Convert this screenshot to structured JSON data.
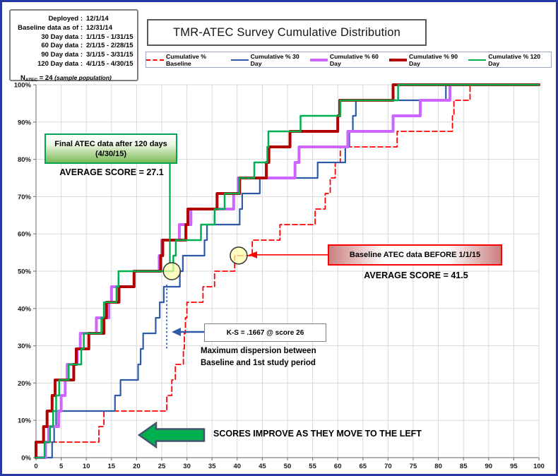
{
  "info_box": {
    "rows": [
      {
        "label": "Deployed :",
        "value": "12/1/14"
      },
      {
        "label": "Baseline data as of :",
        "value": "12/31/14"
      },
      {
        "label": "30 Day data :",
        "value": "1/1/15 - 1/31/15"
      },
      {
        "label": "60 Day data :",
        "value": "2/1/15 - 2/28/15"
      },
      {
        "label": "90 Day data :",
        "value": "3/1/15 - 3/31/15"
      },
      {
        "label": "120 Day data :",
        "value": "4/1/15 - 4/30/15"
      }
    ],
    "n_label": "N",
    "n_sub": "ATEC",
    "n_value": " =  24  ",
    "n_note": "(sample population)"
  },
  "title": "TMR-ATEC Survey Cumulative Distribution",
  "legend": [
    {
      "label": "Cumulative % Baseline",
      "color": "#FF0000",
      "dashed": true,
      "thickness": 2
    },
    {
      "label": "Cumulative % 30 Day",
      "color": "#2E5AA8",
      "dashed": false,
      "thickness": 2
    },
    {
      "label": "Cumulative % 60 Day",
      "color": "#CC66FF",
      "dashed": false,
      "thickness": 4
    },
    {
      "label": "Cumulative % 90 Day",
      "color": "#B20000",
      "dashed": false,
      "thickness": 4
    },
    {
      "label": "Cumulative % 120 Day",
      "color": "#00B050",
      "dashed": false,
      "thickness": 2
    }
  ],
  "annotations": {
    "final_box_line1": "Final ATEC data after 120 days",
    "final_box_line2": "(4/30/15)",
    "avg_120": "AVERAGE SCORE = 27.1",
    "baseline_box": "Baseline ATEC data BEFORE 1/1/15",
    "avg_baseline": "AVERAGE SCORE = 41.5",
    "ks_note": "K-S = .1667  @  score 26",
    "dispersion_line1": "Maximum dispersion between",
    "dispersion_line2": "Baseline and 1st study period",
    "scores_note": "SCORES IMPROVE AS THEY MOVE TO THE LEFT"
  },
  "chart_data": {
    "type": "line",
    "subtype": "cumulative-step",
    "grid": true,
    "n_samples": 24,
    "step_size_percent": 4.1667,
    "x_range": [
      0,
      100
    ],
    "y_range_percent": [
      0,
      100
    ],
    "x_ticks": [
      0,
      5,
      10,
      15,
      20,
      25,
      30,
      35,
      40,
      45,
      50,
      55,
      60,
      65,
      70,
      75,
      80,
      85,
      90,
      95,
      100
    ],
    "y_tick_labels": [
      "0%",
      "10%",
      "20%",
      "30%",
      "40%",
      "50%",
      "60%",
      "70%",
      "80%",
      "90%",
      "100%"
    ],
    "series": [
      {
        "name": "Cumulative % Baseline",
        "color": "#FF0000",
        "width": 1.8,
        "dash": "7 4",
        "jump_scores": [
          0,
          12.5,
          13.5,
          26,
          27,
          27.7,
          29.3,
          29.5,
          29.7,
          30,
          33.2,
          35.5,
          39.5,
          43,
          48.5,
          55.5,
          57.5,
          58.5,
          59.5,
          60.5,
          71.8,
          82.8,
          83.1,
          86.3
        ]
      },
      {
        "name": "Cumulative % 30 Day",
        "color": "#2E5AA8",
        "width": 2.2,
        "dash": null,
        "jump_scores": [
          3.2,
          3.6,
          4,
          15.7,
          16.8,
          20.3,
          20.8,
          21.3,
          23.8,
          24.6,
          25.4,
          28.6,
          29.2,
          33.5,
          34,
          40.5,
          41,
          44.5,
          56,
          61.5,
          62.3,
          63,
          63.6,
          81.5
        ]
      },
      {
        "name": "Cumulative % 60 Day",
        "color": "#CC66FF",
        "width": 4,
        "dash": null,
        "jump_scores": [
          1.9,
          2.5,
          4.5,
          5,
          5.8,
          6.2,
          8.2,
          8.8,
          12,
          14.5,
          15,
          19.5,
          24.5,
          25,
          28.5,
          30.8,
          39.3,
          40.2,
          51.5,
          52.3,
          62,
          71,
          76.4,
          82.3
        ]
      },
      {
        "name": "Cumulative % 90 Day",
        "color": "#B20000",
        "width": 4,
        "dash": null,
        "jump_scores": [
          0,
          1.5,
          2.2,
          3.2,
          3.8,
          7.5,
          8,
          10.5,
          13.5,
          14,
          16.5,
          19.5,
          24.8,
          25.2,
          29.8,
          30.2,
          36,
          40.5,
          45.8,
          46.3,
          50.5,
          60,
          60.4,
          71
        ]
      },
      {
        "name": "Cumulative % 120 Day",
        "color": "#00B050",
        "width": 2.5,
        "dash": null,
        "jump_scores": [
          1.7,
          2.8,
          3.4,
          4,
          4.6,
          6.5,
          9,
          9.5,
          13,
          13.5,
          16,
          16.4,
          27.3,
          27.8,
          32.8,
          35.5,
          37.5,
          40.4,
          43.4,
          46,
          46.2,
          52.6,
          60.5,
          72
        ]
      }
    ],
    "markers": {
      "final_circle": {
        "score": 27,
        "percent": 50
      },
      "baseline_circle": {
        "score": 40.3,
        "percent": 54.2
      },
      "ks_dotted_line": {
        "score": 26,
        "from_percent": 46.4,
        "to_percent": 29.0
      }
    }
  }
}
